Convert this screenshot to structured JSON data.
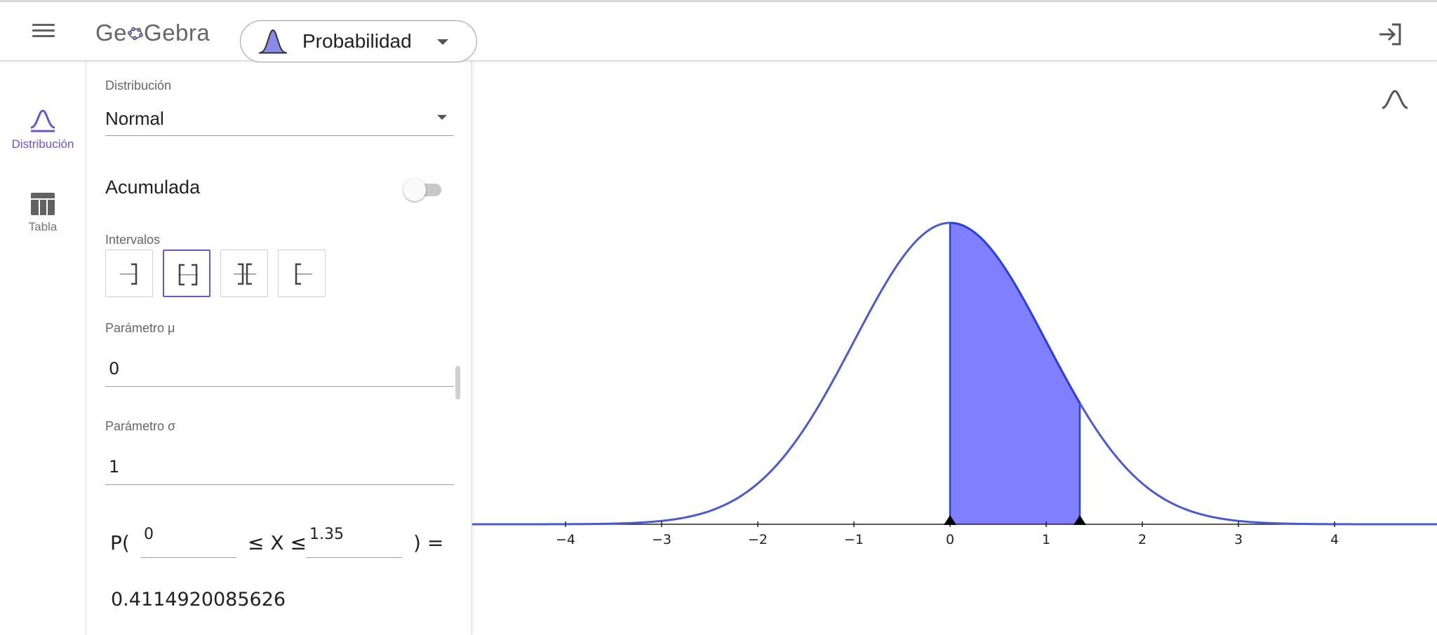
{
  "header": {
    "logo_text_pre": "Ge",
    "logo_text_post": "Gebra",
    "app_name": "Probabilidad"
  },
  "nav": {
    "items": [
      {
        "label": "Distribución",
        "icon": "bell-curve-icon",
        "active": true
      },
      {
        "label": "Tabla",
        "icon": "table-icon",
        "active": false
      }
    ]
  },
  "panel": {
    "distribution_label": "Distribución",
    "distribution_value": "Normal",
    "cumulative_label": "Acumulada",
    "cumulative_on": false,
    "intervals_label": "Intervalos",
    "intervals": [
      {
        "name": "left-sided",
        "selected": false
      },
      {
        "name": "two-sided",
        "selected": true
      },
      {
        "name": "two-tailed",
        "selected": false
      },
      {
        "name": "right-sided",
        "selected": false
      }
    ],
    "mu_label": "Parámetro μ",
    "mu_value": "0",
    "sigma_label": "Parámetro σ",
    "sigma_value": "1",
    "prob": {
      "prefix": "P(",
      "lower": "0",
      "middle": "≤ X ≤",
      "upper": "1.35",
      "suffix": ") ="
    },
    "result": "0.4114920085626"
  },
  "colors": {
    "accent": "#6557d2",
    "curve": "#4a5bd2",
    "fill": "#8080ff"
  },
  "chart_data": {
    "type": "area",
    "function": "normal pdf",
    "mu": 0,
    "sigma": 1,
    "shaded_from": 0,
    "shaded_to": 1.35,
    "xlim": [
      -5,
      5
    ],
    "x_ticks": [
      "−4",
      "−3",
      "−2",
      "−1",
      "0",
      "1",
      "2",
      "3",
      "4"
    ],
    "x_tick_values": [
      -4,
      -3,
      -2,
      -1,
      0,
      1,
      2,
      3,
      4
    ],
    "peak_density": 0.3989
  }
}
